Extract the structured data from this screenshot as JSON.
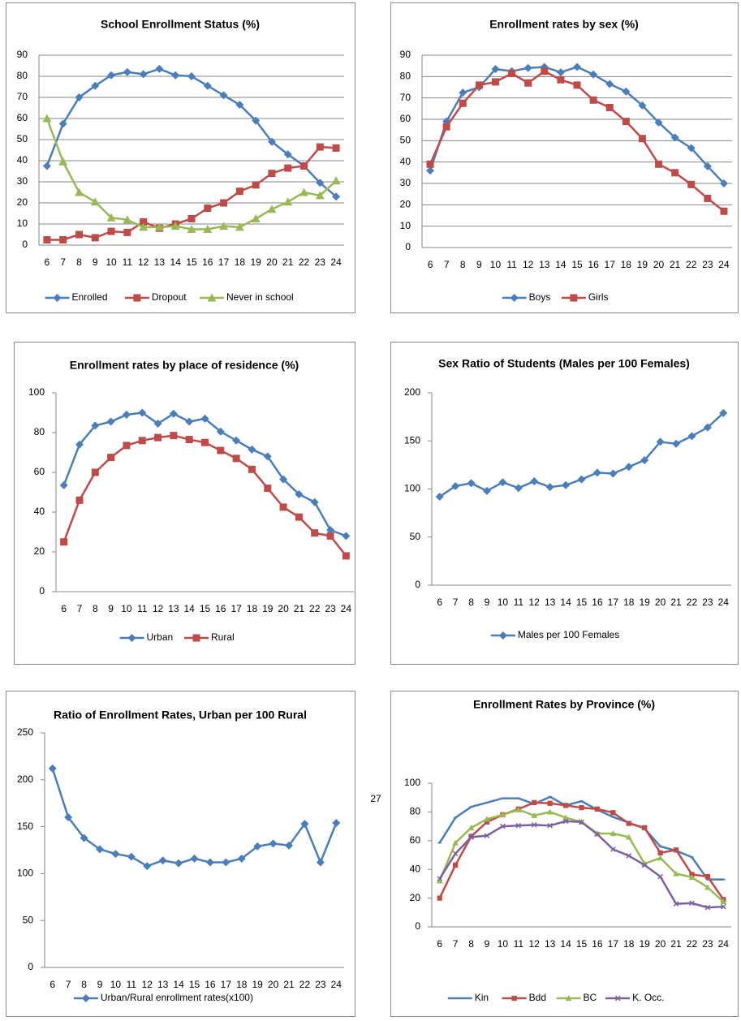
{
  "page_number": "27",
  "chart_data": [
    {
      "type": "line",
      "title": "School Enrollment Status (%)",
      "categories": [
        "6",
        "7",
        "8",
        "9",
        "10",
        "11",
        "12",
        "13",
        "14",
        "15",
        "16",
        "17",
        "18",
        "19",
        "20",
        "21",
        "22",
        "23",
        "24"
      ],
      "ylim": [
        0,
        90
      ],
      "yticks": [
        0,
        10,
        20,
        30,
        40,
        50,
        60,
        70,
        80,
        90
      ],
      "grid": true,
      "legend": "bottom",
      "series": [
        {
          "name": "Enrolled",
          "color": "#4a7ebb",
          "marker": "diamond",
          "values": [
            37.5,
            57.5,
            70,
            75.5,
            80.5,
            82,
            81,
            83.5,
            80.5,
            80,
            75.5,
            71,
            66.5,
            59,
            49,
            43,
            37.5,
            29.5,
            23
          ]
        },
        {
          "name": "Dropout",
          "color": "#be4b48",
          "marker": "square",
          "values": [
            2.5,
            2.5,
            5,
            3.5,
            6.5,
            6,
            11,
            8,
            10,
            12.5,
            17.5,
            20,
            25.5,
            28.5,
            34,
            36.5,
            37.5,
            46.5,
            46
          ]
        },
        {
          "name": "Never in school",
          "color": "#98b954",
          "marker": "triangle",
          "values": [
            60,
            39.5,
            25,
            20.5,
            13,
            12,
            8.5,
            8.5,
            9,
            7.5,
            7.5,
            9,
            8.5,
            12.5,
            17,
            20.5,
            25,
            23.5,
            30.5
          ]
        }
      ]
    },
    {
      "type": "line",
      "title": "Enrollment rates by sex (%)",
      "categories": [
        "6",
        "7",
        "8",
        "9",
        "10",
        "11",
        "12",
        "13",
        "14",
        "15",
        "16",
        "17",
        "18",
        "19",
        "20",
        "21",
        "22",
        "23",
        "24"
      ],
      "ylim": [
        0,
        90
      ],
      "yticks": [
        0,
        10,
        20,
        30,
        40,
        50,
        60,
        70,
        80,
        90
      ],
      "grid": true,
      "legend": "bottom",
      "series": [
        {
          "name": "Boys",
          "color": "#4a7ebb",
          "marker": "diamond",
          "values": [
            36,
            59,
            72.5,
            75,
            83.5,
            82.5,
            84,
            84.5,
            82,
            84.5,
            81,
            76.5,
            73,
            66.5,
            58.5,
            51.5,
            46.5,
            38,
            30
          ]
        },
        {
          "name": "Girls",
          "color": "#be4b48",
          "marker": "square",
          "values": [
            39,
            56.5,
            67.5,
            76,
            77.5,
            81.5,
            77,
            82.5,
            78.5,
            76,
            69,
            65.5,
            59,
            51,
            39,
            35,
            29.5,
            23,
            17
          ]
        }
      ]
    },
    {
      "type": "line",
      "title": "Enrollment rates by place of residence (%)",
      "categories": [
        "6",
        "7",
        "8",
        "9",
        "10",
        "11",
        "12",
        "13",
        "14",
        "15",
        "16",
        "17",
        "18",
        "19",
        "20",
        "21",
        "22",
        "23",
        "24"
      ],
      "ylim": [
        0,
        100
      ],
      "yticks": [
        0,
        20,
        40,
        60,
        80,
        100
      ],
      "grid": false,
      "legend": "bottom",
      "series": [
        {
          "name": "Urban",
          "color": "#4a7ebb",
          "marker": "diamond",
          "values": [
            53.5,
            74,
            83.5,
            85.5,
            89,
            90,
            84.5,
            89.5,
            85.5,
            87,
            80.5,
            76,
            71.5,
            68,
            56.5,
            49,
            45,
            31,
            28
          ]
        },
        {
          "name": "Rural",
          "color": "#be4b48",
          "marker": "square",
          "values": [
            25,
            46,
            60,
            67.5,
            73.5,
            76,
            77.5,
            78.5,
            76.5,
            75,
            71,
            67,
            61.5,
            52,
            42.5,
            37.5,
            29.5,
            28,
            18
          ]
        }
      ]
    },
    {
      "type": "line",
      "title": "Sex Ratio of Students (Males per 100 Females)",
      "categories": [
        "6",
        "7",
        "8",
        "9",
        "10",
        "11",
        "12",
        "13",
        "14",
        "15",
        "16",
        "17",
        "18",
        "19",
        "20",
        "21",
        "22",
        "23",
        "24"
      ],
      "ylim": [
        0,
        200
      ],
      "yticks": [
        0,
        50,
        100,
        150,
        200
      ],
      "grid": false,
      "legend": "bottom",
      "series": [
        {
          "name": "Males per 100 Females",
          "color": "#4a7ebb",
          "marker": "diamond",
          "values": [
            92,
            103,
            106,
            98,
            107,
            101,
            108,
            102,
            104,
            110,
            117,
            116,
            123,
            130,
            149,
            147,
            155,
            164,
            179
          ]
        }
      ]
    },
    {
      "type": "line",
      "title": "Ratio of Enrollment Rates, Urban per 100 Rural",
      "categories": [
        "6",
        "7",
        "8",
        "9",
        "10",
        "11",
        "12",
        "13",
        "14",
        "15",
        "16",
        "17",
        "18",
        "19",
        "20",
        "21",
        "22",
        "23",
        "24"
      ],
      "ylim": [
        0,
        250
      ],
      "yticks": [
        0,
        50,
        100,
        150,
        200,
        250
      ],
      "grid": false,
      "legend": "bottom",
      "series": [
        {
          "name": "Urban/Rural enrollment rates(x100)",
          "color": "#4a7ebb",
          "marker": "diamond",
          "values": [
            212,
            160,
            138,
            126,
            121,
            118,
            108,
            114,
            111,
            116,
            112,
            112,
            116,
            129,
            132,
            130,
            153,
            112,
            154
          ]
        }
      ]
    },
    {
      "type": "line",
      "title": "Enrollment Rates by Province (%)",
      "categories": [
        "6",
        "7",
        "8",
        "9",
        "10",
        "11",
        "12",
        "13",
        "14",
        "15",
        "16",
        "17",
        "18",
        "19",
        "20",
        "21",
        "22",
        "23",
        "24"
      ],
      "ylim": [
        0,
        100
      ],
      "yticks": [
        0,
        20,
        40,
        60,
        80,
        100
      ],
      "grid": false,
      "legend": "bottom",
      "series": [
        {
          "name": "Kin",
          "color": "#4a7ebb",
          "marker": "dash",
          "values": [
            58.5,
            76,
            83.5,
            86.5,
            89.5,
            89.5,
            85.5,
            90.5,
            84.5,
            87.5,
            81.5,
            76.5,
            72.5,
            68.5,
            56,
            53,
            48.5,
            33,
            33
          ]
        },
        {
          "name": "Bdd",
          "color": "#be4b48",
          "marker": "square",
          "values": [
            20,
            43,
            63,
            73,
            78,
            82,
            86.5,
            86,
            84.5,
            83,
            82,
            79.5,
            72,
            69,
            51.5,
            53.5,
            36.5,
            35,
            19
          ]
        },
        {
          "name": "BC",
          "color": "#98b954",
          "marker": "triangle",
          "values": [
            32,
            58.5,
            69,
            75,
            78,
            81.5,
            77.5,
            80,
            76,
            73,
            65,
            65,
            62.5,
            44,
            48,
            37,
            34.5,
            27.5,
            17.5
          ]
        },
        {
          "name": "K. Occ.",
          "color": "#7d60a0",
          "marker": "x",
          "values": [
            33.5,
            51,
            62.5,
            63.5,
            70,
            70.5,
            71,
            70.5,
            73.5,
            73,
            64.5,
            54,
            49.5,
            43,
            35,
            16,
            16.5,
            13.5,
            14
          ]
        }
      ]
    }
  ]
}
